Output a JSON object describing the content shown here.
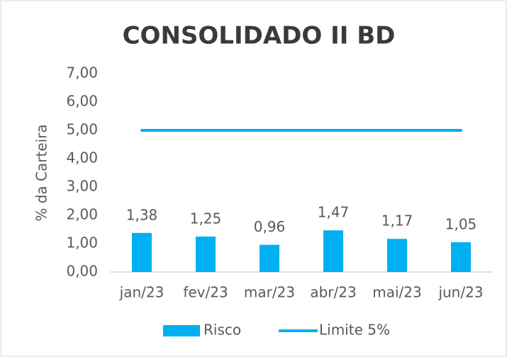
{
  "chart_data": {
    "type": "bar",
    "title": "CONSOLIDADO II BD",
    "y_axis_label": "% da Carteira",
    "categories": [
      "jan/23",
      "fev/23",
      "mar/23",
      "abr/23",
      "mai/23",
      "jun/23"
    ],
    "series": [
      {
        "name": "Risco",
        "type": "bar",
        "color": "#00b0f0",
        "values": [
          1.38,
          1.25,
          0.96,
          1.47,
          1.17,
          1.05
        ],
        "value_labels": [
          "1,38",
          "1,25",
          "0,96",
          "1,47",
          "1,17",
          "1,05"
        ]
      },
      {
        "name": "Limite 5%",
        "type": "line",
        "color": "#00b0f0",
        "values": [
          5,
          5,
          5,
          5,
          5,
          5
        ]
      }
    ],
    "ylim": [
      0,
      7
    ],
    "yticks": [
      {
        "value": 0,
        "label": "0,00"
      },
      {
        "value": 1,
        "label": "1,00"
      },
      {
        "value": 2,
        "label": "2,00"
      },
      {
        "value": 3,
        "label": "3,00"
      },
      {
        "value": 4,
        "label": "4,00"
      },
      {
        "value": 5,
        "label": "5,00"
      },
      {
        "value": 6,
        "label": "6,00"
      },
      {
        "value": 7,
        "label": "7,00"
      }
    ],
    "grid": false,
    "legend": "bottom"
  }
}
